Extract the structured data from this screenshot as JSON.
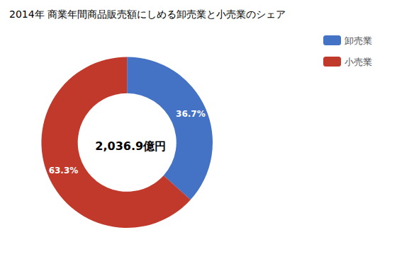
{
  "chart_data": {
    "type": "donut",
    "title": "2014年 商業年間商品販売額にしめる卸売業と小売業のシェア",
    "categories": [
      "卸売業",
      "小売業"
    ],
    "values": [
      36.7,
      63.3
    ],
    "value_labels": [
      "36.7%",
      "63.3%"
    ],
    "colors": [
      "#4472C4",
      "#C0392B"
    ],
    "data_labels": true,
    "annotations": [
      "2,036.9億円"
    ],
    "legend": "upper right"
  }
}
